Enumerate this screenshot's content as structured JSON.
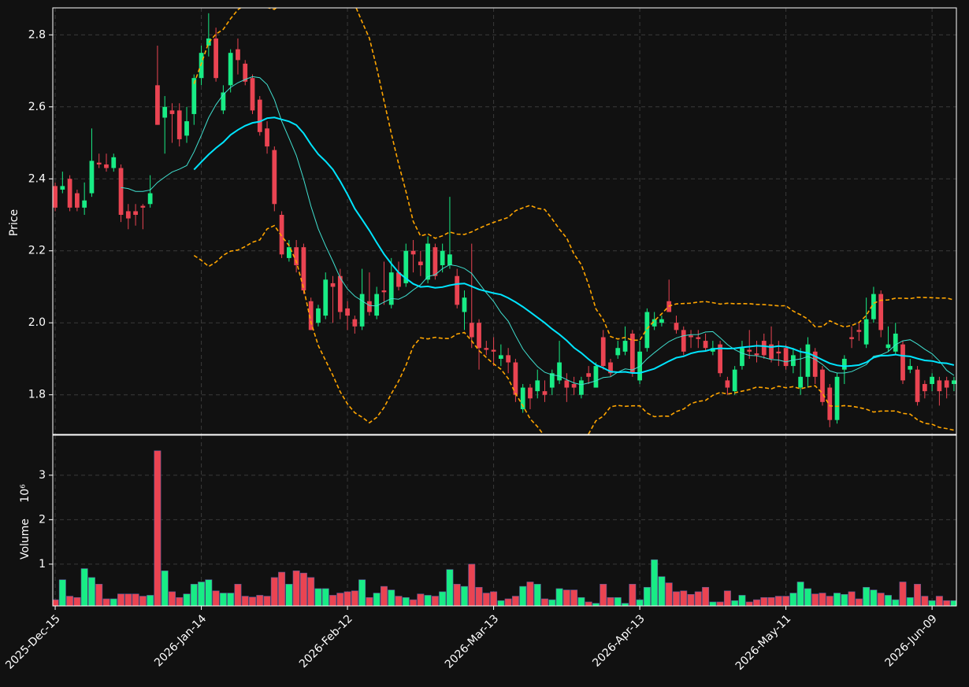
{
  "chart_data": {
    "type": "candlestick",
    "ylabel": "Price",
    "volume_ylabel": "Volume",
    "volume_offset": "10⁶",
    "categories": [
      "2025-Dec-15",
      null,
      null,
      null,
      null,
      null,
      null,
      null,
      null,
      null,
      null,
      null,
      null,
      null,
      null,
      null,
      null,
      null,
      null,
      null,
      "2026-Jan-14",
      null,
      null,
      null,
      null,
      null,
      null,
      null,
      null,
      null,
      null,
      null,
      null,
      null,
      null,
      null,
      null,
      null,
      null,
      null,
      "2026-Feb-12",
      null,
      null,
      null,
      null,
      null,
      null,
      null,
      null,
      null,
      null,
      null,
      null,
      null,
      null,
      null,
      null,
      null,
      null,
      null,
      "2026-Mar-13",
      null,
      null,
      null,
      null,
      null,
      null,
      null,
      null,
      null,
      null,
      null,
      null,
      null,
      null,
      null,
      null,
      null,
      null,
      null,
      "2026-Apr-13",
      null,
      null,
      null,
      null,
      null,
      null,
      null,
      null,
      null,
      null,
      null,
      null,
      null,
      null,
      null,
      null,
      null,
      null,
      null,
      "2026-May-11",
      null,
      null,
      null,
      null,
      null,
      null,
      null,
      null,
      null,
      null,
      null,
      null,
      null,
      null,
      null,
      null,
      null,
      null,
      null,
      "2026-Jun-09",
      null,
      null,
      null
    ],
    "open": [
      2.38,
      2.37,
      2.4,
      2.36,
      2.32,
      2.36,
      2.445,
      2.44,
      2.43,
      2.43,
      2.31,
      2.31,
      2.325,
      2.33,
      2.66,
      2.57,
      2.59,
      2.59,
      2.52,
      2.58,
      2.68,
      2.77,
      2.79,
      2.59,
      2.66,
      2.76,
      2.72,
      2.68,
      2.62,
      2.54,
      2.48,
      2.3,
      2.18,
      2.21,
      2.21,
      2.06,
      2.0,
      2.02,
      2.11,
      2.13,
      2.04,
      2.01,
      1.99,
      2.06,
      2.02,
      2.09,
      2.05,
      2.14,
      2.11,
      2.2,
      2.17,
      2.12,
      2.21,
      2.16,
      2.16,
      2.13,
      2.03,
      2.0,
      2.0,
      1.93,
      1.925,
      1.9,
      1.91,
      1.89,
      1.76,
      1.82,
      1.81,
      1.81,
      1.82,
      1.84,
      1.84,
      1.83,
      1.8,
      1.86,
      1.82,
      1.96,
      1.89,
      1.91,
      1.92,
      1.97,
      1.84,
      1.93,
      1.99,
      2.0,
      2.06,
      2.0,
      1.98,
      1.965,
      1.96,
      1.95,
      1.92,
      1.94,
      1.84,
      1.81,
      1.88,
      1.925,
      1.915,
      1.95,
      1.94,
      1.92,
      1.93,
      1.88,
      1.82,
      1.85,
      1.92,
      1.87,
      1.82,
      1.73,
      1.87,
      1.96,
      1.98,
      1.94,
      2.01,
      2.08,
      1.93,
      1.92,
      1.94,
      1.87,
      1.87,
      1.83,
      1.83,
      1.84,
      1.84,
      1.83
    ],
    "high": [
      2.39,
      2.42,
      2.41,
      2.37,
      2.39,
      2.54,
      2.47,
      2.47,
      2.47,
      2.44,
      2.33,
      2.33,
      2.33,
      2.41,
      2.77,
      2.63,
      2.61,
      2.61,
      2.6,
      2.69,
      2.77,
      2.86,
      2.82,
      2.66,
      2.76,
      2.79,
      2.73,
      2.69,
      2.63,
      2.56,
      2.49,
      2.31,
      2.23,
      2.23,
      2.22,
      2.07,
      2.05,
      2.14,
      2.13,
      2.15,
      2.06,
      2.02,
      2.15,
      2.14,
      2.1,
      2.17,
      2.18,
      2.17,
      2.22,
      2.23,
      2.2,
      2.24,
      2.22,
      2.22,
      2.35,
      2.15,
      2.09,
      2.22,
      2.01,
      1.95,
      1.96,
      1.94,
      1.93,
      1.9,
      1.83,
      1.83,
      1.87,
      1.84,
      1.87,
      1.95,
      1.86,
      1.85,
      1.85,
      1.88,
      1.89,
      1.98,
      1.9,
      1.95,
      1.99,
      1.98,
      1.95,
      2.04,
      2.03,
      2.02,
      2.12,
      2.02,
      1.99,
      1.98,
      1.98,
      1.97,
      1.95,
      1.95,
      1.85,
      1.88,
      1.95,
      1.98,
      1.95,
      1.97,
      1.99,
      1.95,
      1.94,
      1.93,
      1.93,
      1.96,
      1.93,
      1.88,
      1.83,
      1.86,
      1.91,
      1.99,
      2.0,
      2.07,
      2.1,
      2.09,
      1.99,
      2.0,
      1.95,
      1.9,
      1.88,
      1.84,
      1.86,
      1.85,
      1.85,
      1.85
    ],
    "low": [
      2.31,
      2.36,
      2.31,
      2.31,
      2.3,
      2.35,
      2.43,
      2.42,
      2.42,
      2.28,
      2.26,
      2.27,
      2.26,
      2.32,
      2.55,
      2.47,
      2.5,
      2.49,
      2.5,
      2.55,
      2.66,
      2.74,
      2.67,
      2.58,
      2.64,
      2.69,
      2.66,
      2.58,
      2.52,
      2.47,
      2.31,
      2.18,
      2.17,
      2.14,
      2.08,
      1.98,
      1.99,
      2.01,
      2.0,
      2.01,
      1.98,
      1.97,
      1.98,
      2.02,
      2.01,
      2.05,
      2.04,
      2.09,
      2.1,
      2.14,
      2.13,
      2.11,
      2.12,
      2.14,
      2.15,
      2.04,
      1.98,
      1.93,
      1.87,
      1.91,
      1.88,
      1.88,
      1.86,
      1.78,
      1.75,
      1.76,
      1.79,
      1.78,
      1.8,
      1.83,
      1.78,
      1.8,
      1.79,
      1.83,
      1.82,
      1.87,
      1.85,
      1.9,
      1.91,
      1.85,
      1.83,
      1.92,
      1.98,
      1.99,
      2.03,
      1.97,
      1.91,
      1.93,
      1.93,
      1.92,
      1.91,
      1.85,
      1.8,
      1.8,
      1.87,
      1.9,
      1.89,
      1.9,
      1.89,
      1.88,
      1.87,
      1.86,
      1.8,
      1.82,
      1.83,
      1.77,
      1.71,
      1.72,
      1.83,
      1.93,
      1.95,
      1.93,
      2.0,
      1.96,
      1.92,
      1.91,
      1.83,
      1.86,
      1.77,
      1.79,
      1.81,
      1.77,
      1.79,
      1.81
    ],
    "close": [
      2.32,
      2.38,
      2.32,
      2.32,
      2.34,
      2.45,
      2.44,
      2.43,
      2.46,
      2.3,
      2.29,
      2.3,
      2.32,
      2.36,
      2.55,
      2.6,
      2.58,
      2.51,
      2.56,
      2.68,
      2.75,
      2.79,
      2.68,
      2.64,
      2.75,
      2.73,
      2.67,
      2.59,
      2.53,
      2.49,
      2.33,
      2.19,
      2.21,
      2.16,
      2.09,
      1.98,
      2.04,
      2.12,
      2.1,
      2.03,
      2.02,
      1.99,
      2.08,
      2.03,
      2.08,
      2.085,
      2.14,
      2.1,
      2.2,
      2.19,
      2.16,
      2.22,
      2.13,
      2.2,
      2.19,
      2.05,
      2.07,
      1.96,
      1.93,
      1.925,
      1.92,
      1.91,
      1.89,
      1.8,
      1.82,
      1.79,
      1.84,
      1.8,
      1.86,
      1.89,
      1.82,
      1.82,
      1.84,
      1.85,
      1.88,
      1.88,
      1.86,
      1.93,
      1.95,
      1.86,
      1.92,
      2.03,
      2.01,
      2.01,
      2.03,
      1.98,
      1.92,
      1.96,
      1.955,
      1.93,
      1.93,
      1.86,
      1.82,
      1.87,
      1.93,
      1.92,
      1.91,
      1.91,
      1.9,
      1.915,
      1.88,
      1.91,
      1.85,
      1.94,
      1.85,
      1.78,
      1.73,
      1.85,
      1.9,
      1.955,
      1.975,
      2.01,
      2.08,
      1.98,
      1.94,
      1.97,
      1.84,
      1.88,
      1.78,
      1.81,
      1.85,
      1.81,
      1.82,
      1.84
    ],
    "volume": [
      0.2,
      0.65,
      0.28,
      0.25,
      0.9,
      0.7,
      0.55,
      0.22,
      0.22,
      0.33,
      0.33,
      0.33,
      0.28,
      0.3,
      3.55,
      0.85,
      0.38,
      0.25,
      0.33,
      0.55,
      0.6,
      0.65,
      0.4,
      0.35,
      0.35,
      0.55,
      0.28,
      0.26,
      0.3,
      0.28,
      0.7,
      0.82,
      0.55,
      0.85,
      0.8,
      0.7,
      0.45,
      0.45,
      0.3,
      0.35,
      0.38,
      0.4,
      0.65,
      0.25,
      0.35,
      0.5,
      0.42,
      0.28,
      0.25,
      0.2,
      0.33,
      0.3,
      0.28,
      0.38,
      0.88,
      0.55,
      0.5,
      1.0,
      0.48,
      0.35,
      0.38,
      0.18,
      0.22,
      0.28,
      0.5,
      0.6,
      0.55,
      0.22,
      0.2,
      0.45,
      0.42,
      0.42,
      0.25,
      0.15,
      0.12,
      0.55,
      0.25,
      0.25,
      0.12,
      0.55,
      0.2,
      0.48,
      1.1,
      0.72,
      0.58,
      0.38,
      0.4,
      0.32,
      0.38,
      0.48,
      0.15,
      0.15,
      0.4,
      0.18,
      0.3,
      0.15,
      0.2,
      0.25,
      0.25,
      0.28,
      0.28,
      0.35,
      0.6,
      0.45,
      0.33,
      0.35,
      0.28,
      0.35,
      0.32,
      0.38,
      0.22,
      0.48,
      0.42,
      0.35,
      0.3,
      0.2,
      0.6,
      0.25,
      0.55,
      0.28,
      0.18,
      0.28,
      0.18,
      0.18
    ],
    "up_color": "#18ec85",
    "down_color": "#ea4452",
    "mav": [
      10,
      20
    ],
    "mav_colors": [
      "#40e0d0",
      "#00e5ff"
    ],
    "bollinger": {
      "window": 20,
      "std": 2,
      "color": "#ffa500"
    },
    "ylim": [
      1.69,
      2.875
    ],
    "yticks": [
      1.8,
      {
        "value": 2,
        "label": "2.0"
      },
      2.2,
      2.4,
      2.6,
      2.8
    ],
    "volume_ylim": [
      0.06,
      3.9
    ],
    "volume_yticks": [
      1,
      2,
      3
    ],
    "grid": true
  }
}
